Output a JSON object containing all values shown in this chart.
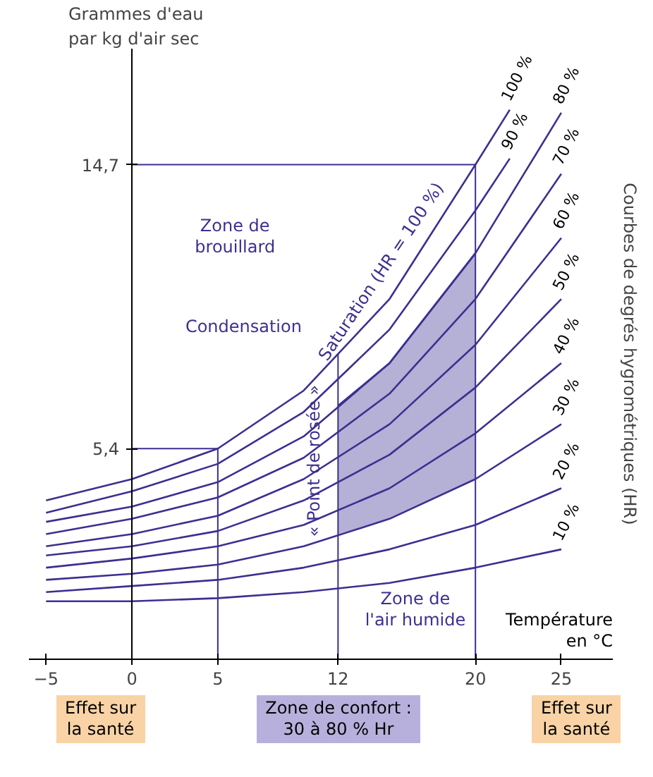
{
  "chart_data": {
    "type": "line",
    "xlabel": "Température\nen °C",
    "ylabel": "Grammes d'eau\npar kg d'air sec",
    "xlim": [
      -6,
      28
    ],
    "ylim": [
      -1.5,
      18.5
    ],
    "xticks": [
      -5,
      0,
      5,
      12,
      20,
      25
    ],
    "yticks": [
      {
        "value": 5.4,
        "label": "5,4"
      },
      {
        "value": 14.7,
        "label": "14,7"
      }
    ],
    "grid": false,
    "series": [
      {
        "color": "#3d2f91",
        "x": [
          12,
          15,
          20
        ],
        "values": [
          6.8,
          8.2,
          11.8
        ],
        "lower": [
          2.6,
          3.1,
          4.4
        ],
        "upper": [
          6.8,
          8.2,
          11.8
        ]
      },
      {
        "name": "100 %",
        "color": "#3d2f91",
        "x": [
          -5,
          0,
          5,
          10,
          15,
          20,
          22
        ],
        "values": [
          3.7,
          4.4,
          5.4,
          7.3,
          10.3,
          14.7,
          16.5
        ]
      },
      {
        "name": "90 %",
        "color": "#3d2f91",
        "x": [
          -5,
          0,
          5,
          10,
          15,
          20,
          22
        ],
        "values": [
          3.3,
          4.0,
          4.9,
          6.6,
          9.3,
          13.2,
          14.9
        ]
      },
      {
        "name": "80 %",
        "color": "#3d2f91",
        "x": [
          -5,
          0,
          5,
          10,
          15,
          20,
          25
        ],
        "values": [
          3.0,
          3.5,
          4.3,
          5.8,
          8.2,
          11.8,
          16.4
        ]
      },
      {
        "name": "70 %",
        "color": "#3d2f91",
        "x": [
          -5,
          0,
          5,
          10,
          15,
          20,
          25
        ],
        "values": [
          2.6,
          3.1,
          3.8,
          5.1,
          7.2,
          10.3,
          14.4
        ]
      },
      {
        "name": "60 %",
        "color": "#3d2f91",
        "x": [
          -5,
          0,
          5,
          10,
          15,
          20,
          25
        ],
        "values": [
          2.2,
          2.6,
          3.2,
          4.4,
          6.2,
          8.8,
          12.3
        ]
      },
      {
        "name": "50 %",
        "color": "#3d2f91",
        "x": [
          -5,
          0,
          5,
          10,
          15,
          20,
          25
        ],
        "values": [
          1.9,
          2.2,
          2.7,
          3.7,
          5.2,
          7.4,
          10.3
        ]
      },
      {
        "name": "40 %",
        "color": "#3d2f91",
        "x": [
          -5,
          0,
          5,
          10,
          15,
          20,
          25
        ],
        "values": [
          1.5,
          1.8,
          2.2,
          2.9,
          4.1,
          5.9,
          8.2
        ]
      },
      {
        "name": "30 %",
        "color": "#3d2f91",
        "x": [
          -5,
          0,
          5,
          10,
          15,
          20,
          25
        ],
        "values": [
          1.1,
          1.3,
          1.6,
          2.2,
          3.1,
          4.4,
          6.2
        ]
      },
      {
        "name": "20 %",
        "color": "#3d2f91",
        "x": [
          -5,
          0,
          5,
          10,
          15,
          20,
          25
        ],
        "values": [
          0.7,
          0.9,
          1.1,
          1.5,
          2.1,
          2.9,
          4.1
        ]
      },
      {
        "name": "10 %",
        "color": "#3d2f91",
        "x": [
          -5,
          0,
          5,
          10,
          15,
          20,
          25
        ],
        "values": [
          0.4,
          0.4,
          0.5,
          0.7,
          1.0,
          1.5,
          2.1
        ]
      }
    ],
    "ref_lines": [
      {
        "axis": "x",
        "value": 5,
        "color": "#3d2f91"
      },
      {
        "axis": "x",
        "value": 12,
        "color": "#3d2f91"
      },
      {
        "axis": "x",
        "value": 20,
        "color": "#3d2f91"
      },
      {
        "axis": "y",
        "value": 5.4,
        "color": "#3d2f91"
      },
      {
        "axis": "y",
        "value": 14.7,
        "color": "#3d2f91"
      }
    ],
    "annotations": [
      "Zone de\nbrouillard",
      "Saturation (HR = 100 %)",
      "Condensation",
      "« Point de rosée »",
      "Zone de\nl'air humide",
      "Courbes de degrés hygrométriques (HR)",
      "Effet sur\nla santé",
      "Zone de confort :\n30 à 80 % Hr",
      "Effet sur\nla santé"
    ]
  }
}
